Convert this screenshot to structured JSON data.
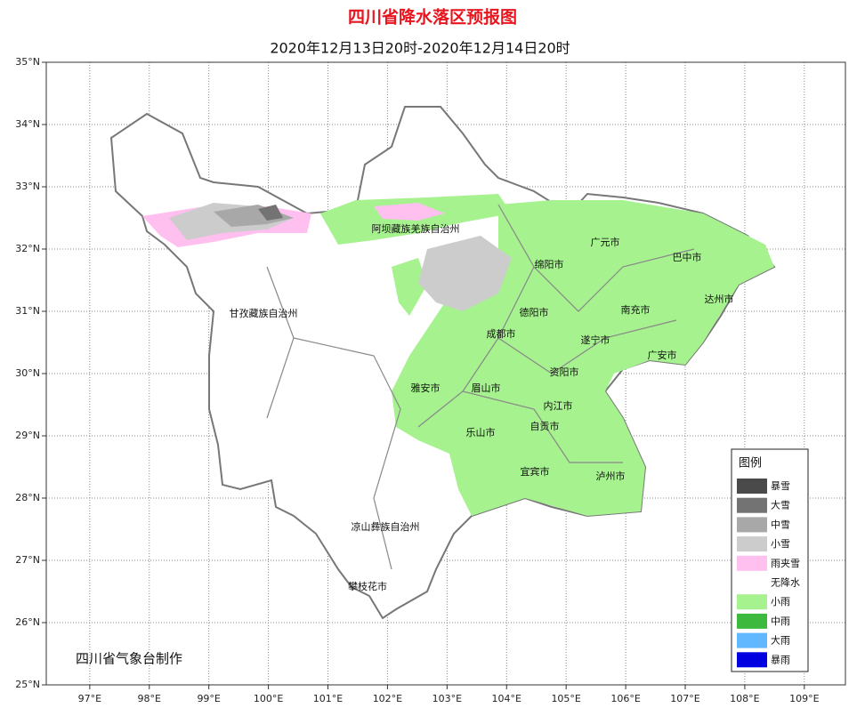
{
  "header": {
    "title": "四川省降水落区预报图",
    "subtitle": "2020年12月13日20时-2020年12月14日20时"
  },
  "map": {
    "xlim": [
      96.27,
      109.69
    ],
    "ylim": [
      25,
      35
    ],
    "grid": true,
    "xticks": [
      {
        "value": 97,
        "label": "97°E"
      },
      {
        "value": 98,
        "label": "98°E"
      },
      {
        "value": 99,
        "label": "99°E"
      },
      {
        "value": 100,
        "label": "100°E"
      },
      {
        "value": 101,
        "label": "101°E"
      },
      {
        "value": 102,
        "label": "102°E"
      },
      {
        "value": 103,
        "label": "103°E"
      },
      {
        "value": 104,
        "label": "104°E"
      },
      {
        "value": 105,
        "label": "105°E"
      },
      {
        "value": 106,
        "label": "106°E"
      },
      {
        "value": 107,
        "label": "107°E"
      },
      {
        "value": 108,
        "label": "108°E"
      },
      {
        "value": 109,
        "label": "109°E"
      }
    ],
    "yticks": [
      {
        "value": 25,
        "label": "25°N"
      },
      {
        "value": 26,
        "label": "26°N"
      },
      {
        "value": 27,
        "label": "27°N"
      },
      {
        "value": 28,
        "label": "28°N"
      },
      {
        "value": 29,
        "label": "29°N"
      },
      {
        "value": 30,
        "label": "30°N"
      },
      {
        "value": 31,
        "label": "31°N"
      },
      {
        "value": 32,
        "label": "32°N"
      },
      {
        "value": 33,
        "label": "33°N"
      },
      {
        "value": 34,
        "label": "34°N"
      },
      {
        "value": 35,
        "label": "35°N"
      }
    ],
    "places": [
      "阿坝藏族羌族自治州",
      "广元市",
      "巴中市",
      "绵阳市",
      "甘孜藏族自治州",
      "德阳市",
      "南充市",
      "达州市",
      "成都市",
      "遂宁市",
      "广安市",
      "资阳市",
      "雅安市",
      "眉山市",
      "内江市",
      "自贡市",
      "乐山市",
      "宜宾市",
      "泸州市",
      "凉山彝族自治州",
      "攀枝花市"
    ],
    "credit": "四川省气象台制作"
  },
  "legend": {
    "title": "图例",
    "items": [
      {
        "label": "暴雪",
        "color": "#4a4a4a"
      },
      {
        "label": "大雪",
        "color": "#737373"
      },
      {
        "label": "中雪",
        "color": "#a8a8a8"
      },
      {
        "label": "小雪",
        "color": "#cccccc"
      },
      {
        "label": "雨夹雪",
        "color": "#ffc0f0"
      },
      {
        "label": "无降水",
        "color": "#ffffff"
      },
      {
        "label": "小雨",
        "color": "#a6f28f"
      },
      {
        "label": "中雨",
        "color": "#3dba3d"
      },
      {
        "label": "大雨",
        "color": "#61b8ff"
      },
      {
        "label": "暴雨",
        "color": "#0000e1"
      }
    ]
  }
}
